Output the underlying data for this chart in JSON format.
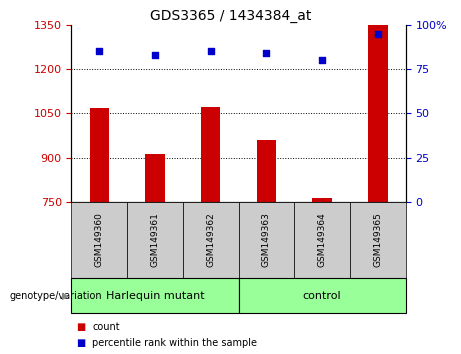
{
  "title": "GDS3365 / 1434384_at",
  "samples": [
    "GSM149360",
    "GSM149361",
    "GSM149362",
    "GSM149363",
    "GSM149364",
    "GSM149365"
  ],
  "counts": [
    1068,
    912,
    1072,
    960,
    762,
    1348
  ],
  "percentiles": [
    85,
    83,
    85,
    84,
    80,
    95
  ],
  "left_ylim": [
    750,
    1350
  ],
  "left_yticks": [
    750,
    900,
    1050,
    1200,
    1350
  ],
  "right_ylim": [
    0,
    100
  ],
  "right_yticks": [
    0,
    25,
    50,
    75,
    100
  ],
  "right_yticklabels": [
    "0",
    "25",
    "50",
    "75",
    "100%"
  ],
  "bar_color": "#cc0000",
  "dot_color": "#0000cc",
  "groups": [
    {
      "label": "Harlequin mutant",
      "indices": [
        0,
        1,
        2
      ]
    },
    {
      "label": "control",
      "indices": [
        3,
        4,
        5
      ]
    }
  ],
  "group_color": "#99ff99",
  "sample_box_color": "#cccccc",
  "legend_count_label": "count",
  "legend_pct_label": "percentile rank within the sample",
  "genotype_label": "genotype/variation"
}
